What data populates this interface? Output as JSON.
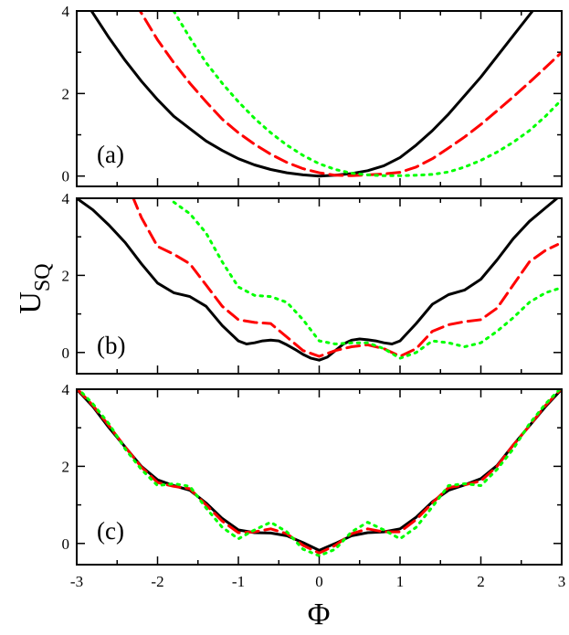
{
  "chart_data": {
    "type": "line",
    "xlabel": "Φ",
    "ylabel_main": "U",
    "ylabel_sub": "SQ",
    "xlim": [
      -3,
      3
    ],
    "x_ticks": [
      -3,
      -2,
      -1,
      0,
      1,
      2,
      3
    ],
    "x_tick_labels": [
      "-3",
      "-2",
      "-1",
      "0",
      "1",
      "2",
      "3"
    ],
    "series_styles": [
      {
        "name": "solid",
        "color": "#000000",
        "dash": "solid"
      },
      {
        "name": "dashed",
        "color": "#ff0000",
        "dash": "dashed"
      },
      {
        "name": "dotted",
        "color": "#00ff00",
        "dash": "dotted"
      }
    ],
    "panels": [
      {
        "label": "(a)",
        "ylim": [
          -0.25,
          4
        ],
        "y_ticks": [
          0,
          2,
          4
        ],
        "y_tick_labels": [
          "0",
          "2",
          "4"
        ],
        "series": [
          {
            "name": "solid",
            "x": [
              -3,
              -2.8,
              -2.6,
              -2.4,
              -2.2,
              -2,
              -1.8,
              -1.6,
              -1.4,
              -1.2,
              -1,
              -0.8,
              -0.6,
              -0.4,
              -0.2,
              0,
              0.2,
              0.4,
              0.6,
              0.8,
              1,
              1.2,
              1.4,
              1.6,
              1.8,
              2,
              2.2,
              2.4,
              2.6,
              2.8,
              3
            ],
            "y": [
              4.55,
              3.95,
              3.35,
              2.8,
              2.3,
              1.85,
              1.45,
              1.15,
              0.85,
              0.62,
              0.42,
              0.27,
              0.16,
              0.08,
              0.03,
              0,
              0.02,
              0.06,
              0.13,
              0.25,
              0.45,
              0.75,
              1.1,
              1.5,
              1.95,
              2.4,
              2.9,
              3.4,
              3.9,
              4.4,
              4.9
            ]
          },
          {
            "name": "dashed",
            "x": [
              -2.4,
              -2.2,
              -2,
              -1.8,
              -1.6,
              -1.4,
              -1.2,
              -1,
              -0.8,
              -0.6,
              -0.4,
              -0.2,
              0,
              0.2,
              0.4,
              0.6,
              0.8,
              1,
              1.2,
              1.4,
              1.6,
              1.8,
              2,
              2.2,
              2.4,
              2.6,
              2.8,
              3
            ],
            "y": [
              4.6,
              3.95,
              3.3,
              2.75,
              2.25,
              1.8,
              1.38,
              1.05,
              0.77,
              0.53,
              0.33,
              0.18,
              0.08,
              0.02,
              0.01,
              0.03,
              0.05,
              0.09,
              0.22,
              0.42,
              0.68,
              0.95,
              1.25,
              1.58,
              1.92,
              2.27,
              2.63,
              3.0
            ]
          },
          {
            "name": "dotted",
            "x": [
              -1.8,
              -1.6,
              -1.4,
              -1.2,
              -1,
              -0.8,
              -0.6,
              -0.4,
              -0.2,
              0,
              0.2,
              0.4,
              0.6,
              0.8,
              1,
              1.2,
              1.4,
              1.6,
              1.8,
              2,
              2.2,
              2.4,
              2.6,
              2.8,
              3
            ],
            "y": [
              4.0,
              3.35,
              2.75,
              2.25,
              1.8,
              1.4,
              1.05,
              0.75,
              0.5,
              0.3,
              0.16,
              0.07,
              0.03,
              0.01,
              0.01,
              0.02,
              0.04,
              0.1,
              0.22,
              0.38,
              0.58,
              0.82,
              1.1,
              1.45,
              1.85
            ]
          }
        ]
      },
      {
        "label": "(b)",
        "ylim": [
          -0.55,
          4
        ],
        "y_ticks": [
          0,
          2,
          4
        ],
        "y_tick_labels": [
          "0",
          "2",
          "4"
        ],
        "series": [
          {
            "name": "solid",
            "x": [
              -3,
              -2.8,
              -2.6,
              -2.4,
              -2.2,
              -2,
              -1.8,
              -1.6,
              -1.4,
              -1.2,
              -1,
              -0.9,
              -0.8,
              -0.7,
              -0.6,
              -0.5,
              -0.4,
              -0.3,
              -0.2,
              -0.1,
              0,
              0.1,
              0.2,
              0.3,
              0.4,
              0.5,
              0.6,
              0.7,
              0.8,
              0.9,
              1,
              1.2,
              1.4,
              1.6,
              1.8,
              2,
              2.2,
              2.4,
              2.6,
              2.8,
              3
            ],
            "y": [
              4.0,
              3.7,
              3.3,
              2.85,
              2.3,
              1.8,
              1.55,
              1.45,
              1.2,
              0.7,
              0.3,
              0.22,
              0.25,
              0.3,
              0.32,
              0.3,
              0.2,
              0.08,
              -0.05,
              -0.15,
              -0.2,
              -0.12,
              0.05,
              0.22,
              0.32,
              0.35,
              0.33,
              0.3,
              0.25,
              0.22,
              0.3,
              0.75,
              1.25,
              1.5,
              1.62,
              1.9,
              2.4,
              2.95,
              3.4,
              3.75,
              4.1
            ]
          },
          {
            "name": "dashed",
            "x": [
              -2.4,
              -2.3,
              -2.2,
              -2,
              -1.8,
              -1.6,
              -1.4,
              -1.2,
              -1,
              -0.8,
              -0.6,
              -0.4,
              -0.2,
              0,
              0.2,
              0.4,
              0.6,
              0.8,
              1,
              1.2,
              1.4,
              1.6,
              1.8,
              2,
              2.2,
              2.4,
              2.6,
              2.8,
              2.95
            ],
            "y": [
              4.5,
              4.0,
              3.5,
              2.75,
              2.55,
              2.3,
              1.75,
              1.2,
              0.85,
              0.78,
              0.75,
              0.4,
              0.05,
              -0.1,
              0.05,
              0.15,
              0.2,
              0.1,
              -0.1,
              0.1,
              0.55,
              0.72,
              0.8,
              0.85,
              1.15,
              1.75,
              2.35,
              2.65,
              2.8
            ]
          },
          {
            "name": "dotted",
            "x": [
              -1.8,
              -1.6,
              -1.4,
              -1.2,
              -1,
              -0.8,
              -0.6,
              -0.4,
              -0.2,
              0,
              0.2,
              0.4,
              0.6,
              0.8,
              1,
              1.2,
              1.4,
              1.6,
              1.8,
              2,
              2.2,
              2.4,
              2.6,
              2.8,
              2.95
            ],
            "y": [
              3.9,
              3.6,
              3.1,
              2.35,
              1.7,
              1.48,
              1.45,
              1.3,
              0.85,
              0.3,
              0.22,
              0.25,
              0.25,
              0.1,
              -0.15,
              0.0,
              0.3,
              0.25,
              0.15,
              0.25,
              0.55,
              0.9,
              1.3,
              1.55,
              1.65
            ]
          }
        ]
      },
      {
        "label": "(c)",
        "ylim": [
          -0.55,
          4
        ],
        "y_ticks": [
          0,
          2,
          4
        ],
        "y_tick_labels": [
          "0",
          "2",
          "4"
        ],
        "series": [
          {
            "name": "solid",
            "x": [
              -3,
              -2.8,
              -2.6,
              -2.4,
              -2.2,
              -2,
              -1.8,
              -1.6,
              -1.4,
              -1.2,
              -1,
              -0.8,
              -0.6,
              -0.4,
              -0.2,
              0,
              0.2,
              0.4,
              0.6,
              0.8,
              1,
              1.2,
              1.4,
              1.6,
              1.8,
              2,
              2.2,
              2.4,
              2.6,
              2.8,
              3
            ],
            "y": [
              4.0,
              3.55,
              3.0,
              2.5,
              2.0,
              1.65,
              1.5,
              1.38,
              1.05,
              0.65,
              0.35,
              0.28,
              0.27,
              0.2,
              0.02,
              -0.18,
              0.0,
              0.2,
              0.28,
              0.3,
              0.38,
              0.68,
              1.08,
              1.38,
              1.52,
              1.68,
              2.02,
              2.55,
              3.05,
              3.55,
              4.0
            ]
          },
          {
            "name": "dashed",
            "x": [
              -3,
              -2.8,
              -2.6,
              -2.4,
              -2.2,
              -2,
              -1.8,
              -1.6,
              -1.4,
              -1.2,
              -1,
              -0.8,
              -0.6,
              -0.4,
              -0.2,
              0,
              0.2,
              0.4,
              0.6,
              0.8,
              1,
              1.2,
              1.4,
              1.6,
              1.8,
              2,
              2.2,
              2.4,
              2.6,
              2.8,
              3
            ],
            "y": [
              4.02,
              3.58,
              3.05,
              2.5,
              1.98,
              1.58,
              1.48,
              1.42,
              1.0,
              0.58,
              0.28,
              0.3,
              0.38,
              0.25,
              -0.05,
              -0.25,
              -0.05,
              0.25,
              0.38,
              0.3,
              0.3,
              0.62,
              1.05,
              1.45,
              1.52,
              1.62,
              2.0,
              2.55,
              3.05,
              3.58,
              4.02
            ]
          },
          {
            "name": "dotted",
            "x": [
              -3,
              -2.8,
              -2.6,
              -2.4,
              -2.2,
              -2,
              -1.8,
              -1.6,
              -1.4,
              -1.2,
              -1,
              -0.8,
              -0.6,
              -0.4,
              -0.2,
              0,
              0.2,
              0.4,
              0.6,
              0.8,
              1,
              1.2,
              1.4,
              1.6,
              1.8,
              2,
              2.2,
              2.4,
              2.6,
              2.8,
              3
            ],
            "y": [
              4.05,
              3.62,
              3.1,
              2.45,
              1.92,
              1.5,
              1.55,
              1.48,
              0.92,
              0.42,
              0.12,
              0.35,
              0.55,
              0.3,
              -0.15,
              -0.32,
              -0.15,
              0.3,
              0.55,
              0.35,
              0.12,
              0.42,
              0.95,
              1.5,
              1.55,
              1.5,
              1.92,
              2.45,
              3.1,
              3.62,
              4.05
            ]
          }
        ]
      }
    ]
  }
}
